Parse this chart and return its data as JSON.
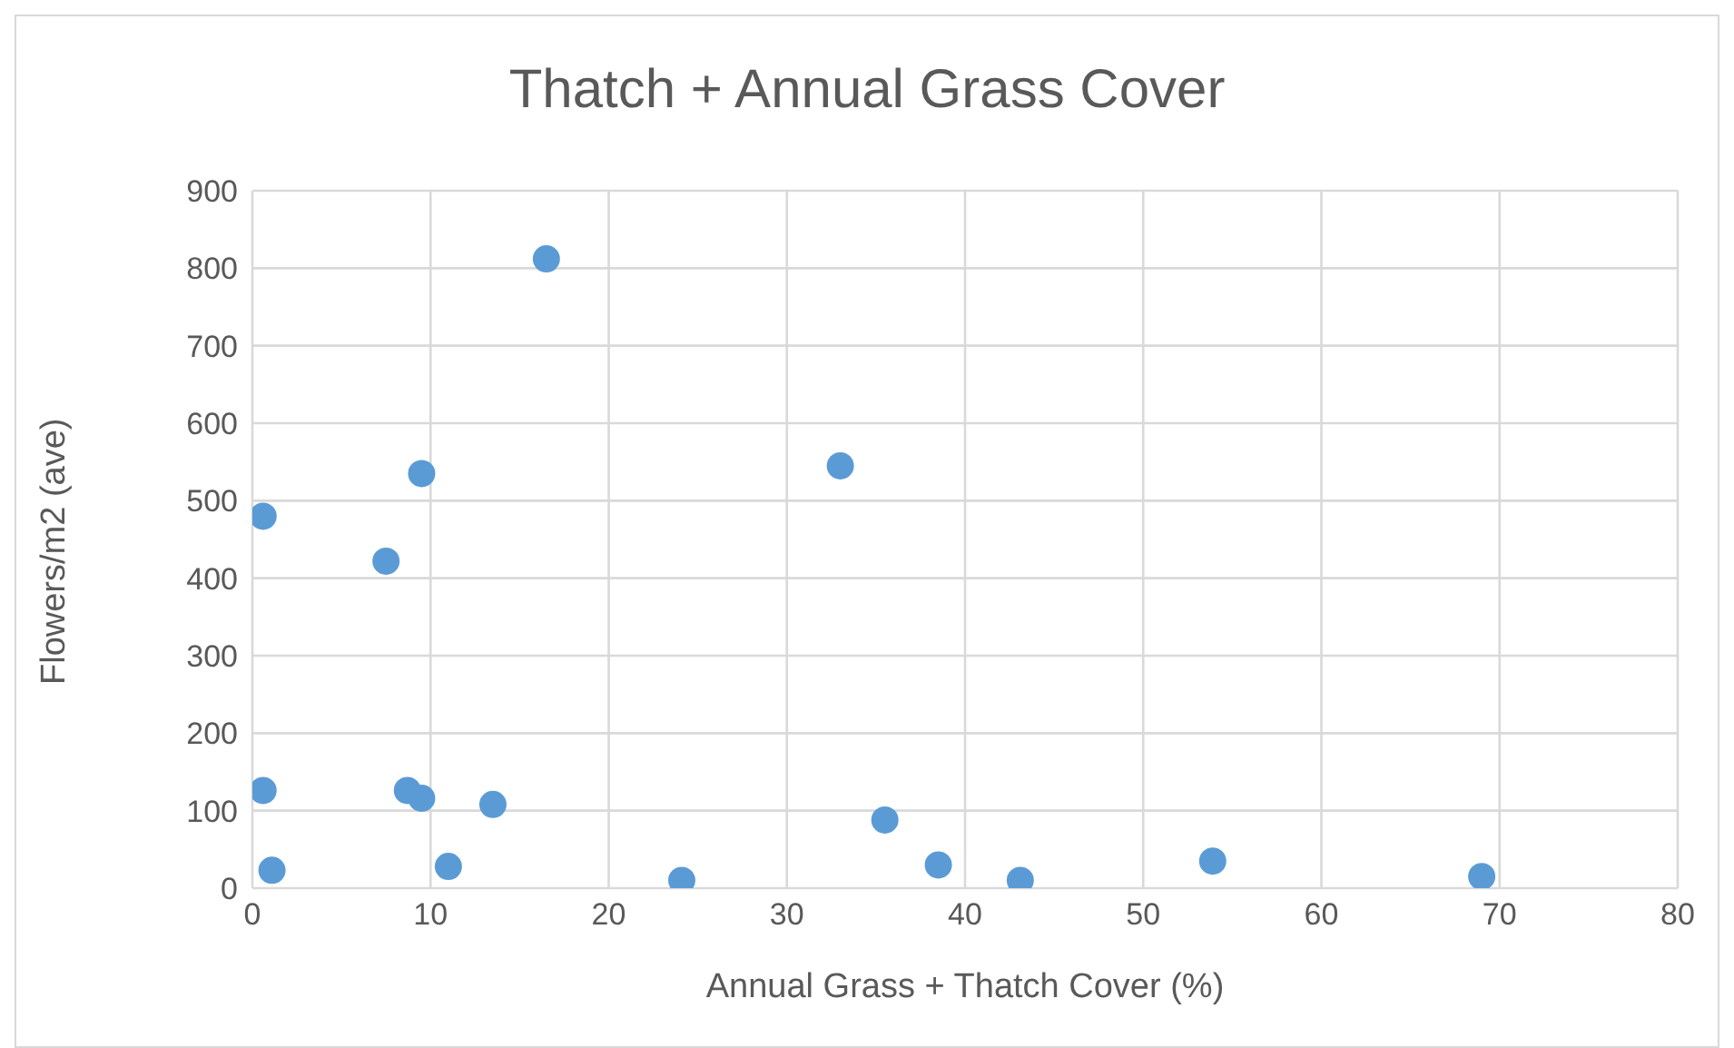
{
  "chart_data": {
    "type": "scatter",
    "title": "Thatch + Annual Grass Cover",
    "xlabel": "Annual Grass + Thatch Cover (%)",
    "ylabel": "Flowers/m2 (ave)",
    "x": [
      0.6,
      0.6,
      1.1,
      7.5,
      8.7,
      9.5,
      9.5,
      11.0,
      13.5,
      16.5,
      24.1,
      33.0,
      35.5,
      38.5,
      43.1,
      53.9,
      69.0
    ],
    "values": [
      480,
      126,
      23,
      422,
      126,
      535,
      116,
      28,
      108,
      812,
      10,
      545,
      88,
      30,
      10,
      35,
      15
    ],
    "color": "#5b9bd5",
    "marker": "circle",
    "grid": true,
    "xlim": [
      0,
      80
    ],
    "xticks": [
      0,
      10,
      20,
      30,
      40,
      50,
      60,
      70,
      80
    ],
    "ylim": [
      0,
      900
    ],
    "yticks": [
      0,
      100,
      200,
      300,
      400,
      500,
      600,
      700,
      800,
      900
    ]
  }
}
